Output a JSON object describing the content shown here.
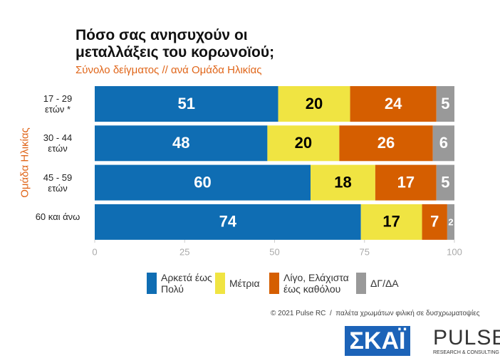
{
  "chart_data": {
    "type": "stacked-bar-horizontal",
    "title": "Πόσο σας ανησυχούν οι μεταλλάξεις του κορωνοϊού;",
    "subtitle": "Σύνολο δείγματος // ανά Ομάδα Ηλικίας",
    "y_label": "Ομάδα Ηλικίας",
    "categories": [
      "17 - 29 ετών *",
      "30 - 44 ετών",
      "45 - 59 ετών",
      "60 και άνω"
    ],
    "series": [
      {
        "name": "Αρκετά έως Πολύ",
        "color": "#0f6db3",
        "label_color": "#ffffff",
        "values": [
          51,
          48,
          60,
          74
        ]
      },
      {
        "name": "Μέτρια",
        "color": "#f0e442",
        "label_color": "#000000",
        "values": [
          20,
          20,
          18,
          17
        ]
      },
      {
        "name": "Λίγο, Ελάχιστα έως καθόλου",
        "color": "#d55e00",
        "label_color": "#ffffff",
        "values": [
          24,
          26,
          17,
          7
        ]
      },
      {
        "name": "ΔΓ/ΔΑ",
        "color": "#999999",
        "label_color": "#ffffff",
        "values": [
          5,
          6,
          5,
          2
        ]
      }
    ],
    "xlim": [
      0,
      100
    ],
    "xticks": [
      0,
      25,
      50,
      75,
      100
    ],
    "footer": "© 2021 Pulse RC  /  παλέτα χρωμάτων φιλική σε δυσχρωματοψίες",
    "logos": {
      "skai": "ΣΚΑΪ",
      "pulse": "PULSE",
      "pulse_sub": "RESEARCH & CONSULTING"
    }
  }
}
